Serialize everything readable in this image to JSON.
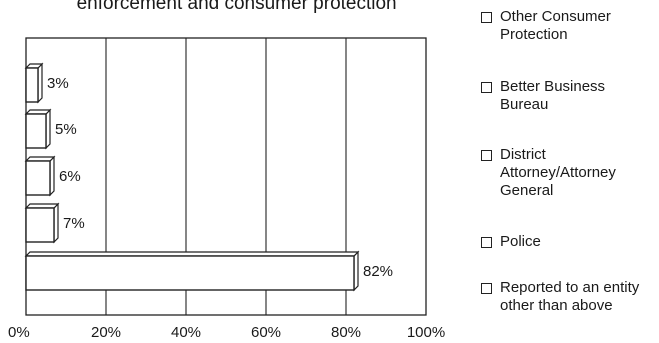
{
  "chart_data": {
    "type": "bar",
    "orientation": "horizontal",
    "title": "enforcement and consumer protection\"",
    "categories": [
      "Other Consumer Protection",
      "Better Business Bureau",
      "District Attorney/Attorney General",
      "Police",
      "Reported to an entity other than above"
    ],
    "values": [
      3,
      5,
      6,
      7,
      82
    ],
    "value_labels": [
      "3%",
      "5%",
      "6%",
      "7%",
      "82%"
    ],
    "xlim": [
      0,
      100
    ],
    "x_ticks": [
      "0%",
      "20%",
      "40%",
      "60%",
      "80%",
      "100%"
    ],
    "grid": true,
    "legend_placement": "right",
    "colors": {
      "bar_fill": "#ffffff",
      "bar_stroke": "#222222",
      "grid": "#222222"
    }
  }
}
